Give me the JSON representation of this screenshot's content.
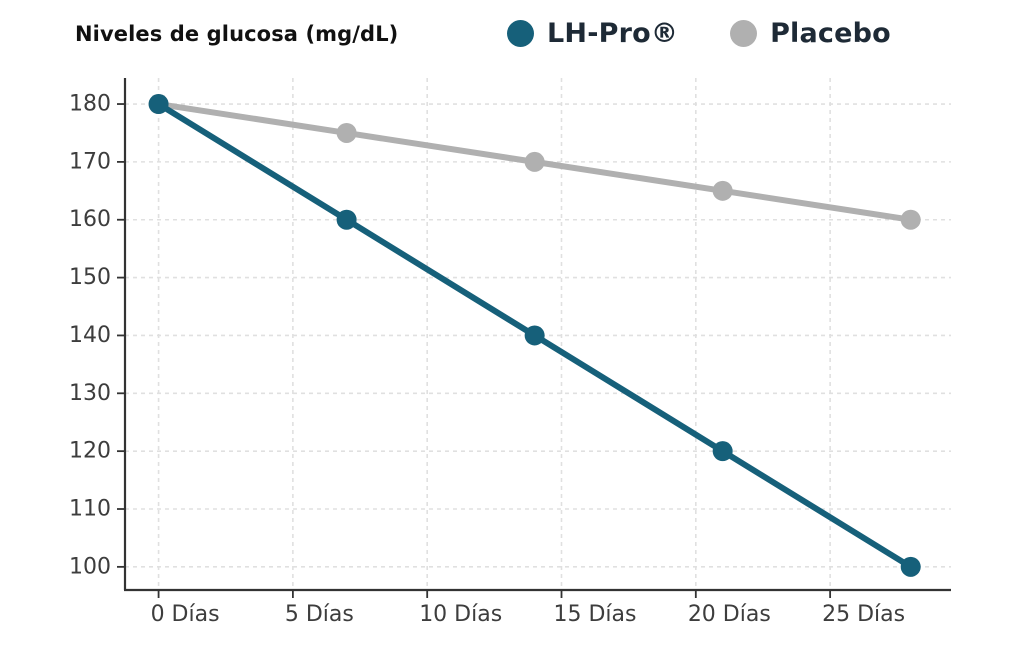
{
  "title": "Niveles de glucosa (mg/dL)",
  "legend": {
    "items": [
      {
        "label": "LH-Pro®",
        "color": "#16607A"
      },
      {
        "label": "Placebo",
        "color": "#B0B0B0"
      }
    ]
  },
  "chart_data": {
    "type": "line",
    "title": "Niveles de glucosa (mg/dL)",
    "x": [
      0,
      7,
      14,
      21,
      28
    ],
    "series": [
      {
        "name": "LH-Pro®",
        "color": "#16607A",
        "values": [
          180,
          160,
          140,
          120,
          100
        ]
      },
      {
        "name": "Placebo",
        "color": "#B0B0B0",
        "values": [
          180,
          175,
          170,
          165,
          160
        ]
      }
    ],
    "xlabel": "",
    "ylabel": "",
    "x_tick_values": [
      0,
      5,
      10,
      15,
      20,
      25
    ],
    "x_tick_labels": [
      "0 Días",
      "5 Días",
      "10 Días",
      "15 Días",
      "20 Días",
      "25 Días"
    ],
    "y_ticks": [
      100,
      110,
      120,
      130,
      140,
      150,
      160,
      170,
      180
    ],
    "xlim": [
      -1.25,
      29.5
    ],
    "ylim": [
      96,
      184.5
    ],
    "grid": true,
    "grid_style": "dashed",
    "legend_position": "top"
  },
  "colors": {
    "background": "#FFFFFF",
    "axis": "#333333",
    "tick_label": "#3D3D3D",
    "gridline": "#E0E0E0",
    "title_text": "#111111",
    "legend_text": "#1E2A36"
  }
}
